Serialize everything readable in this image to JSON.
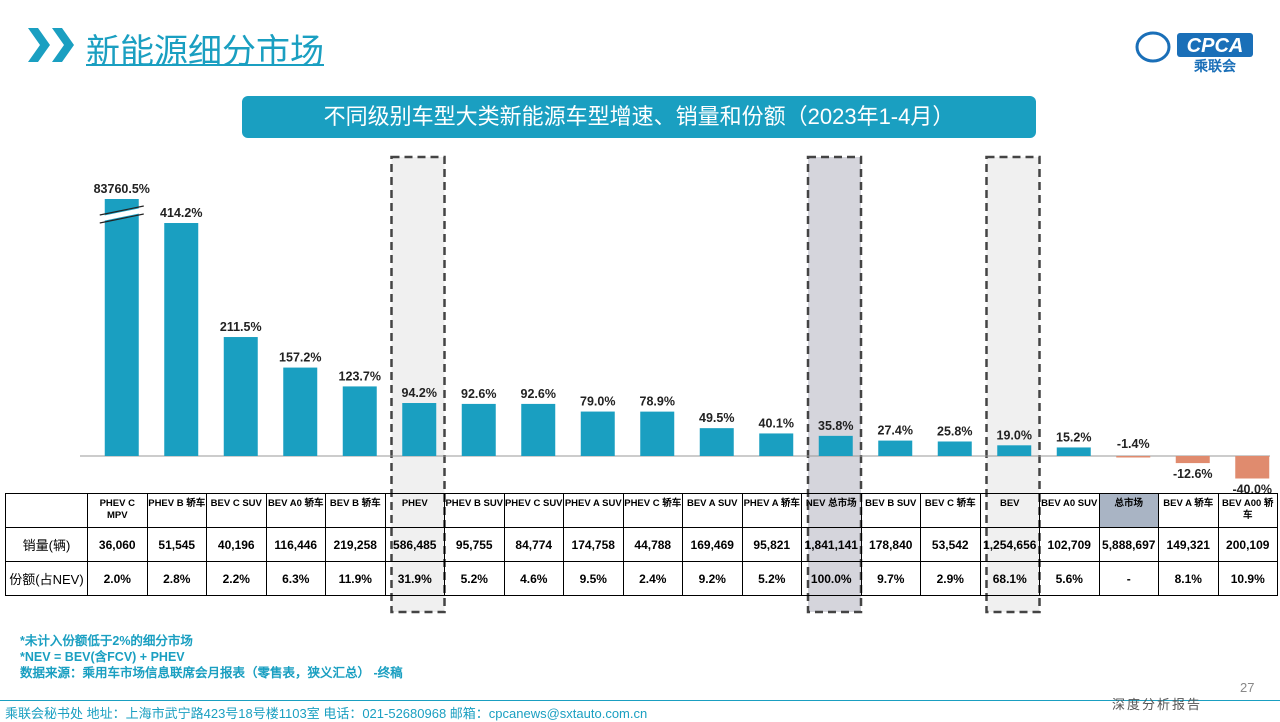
{
  "header": {
    "title": "新能源细分市场",
    "logo_text": "CPCA",
    "logo_cn": "乘联会",
    "subtitle": "不同级别车型大类新能源车型增速、销量和份额（2023年1-4月）"
  },
  "chart_data": {
    "type": "bar",
    "title": "不同级别车型大类新能源车型增速、销量和份额（2023年1-4月）",
    "categories": [
      "PHEV C MPV",
      "PHEV B 轿车",
      "BEV C SUV",
      "BEV A0 轿车",
      "BEV B 轿车",
      "PHEV",
      "PHEV B SUV",
      "PHEV C SUV",
      "PHEV A SUV",
      "PHEV C 轿车",
      "BEV A SUV",
      "PHEV A 轿车",
      "NEV 总市场",
      "BEV B SUV",
      "BEV C 轿车",
      "BEV",
      "BEV A0 SUV",
      "总市场",
      "BEV A 轿车",
      "BEV A00 轿车"
    ],
    "series": [
      {
        "values": [
          83760.5,
          414.2,
          211.5,
          157.2,
          123.7,
          94.2,
          92.6,
          92.6,
          79.0,
          78.9,
          49.5,
          40.1,
          35.8,
          27.4,
          25.8,
          19.0,
          15.2,
          -1.4,
          -12.6,
          -40.0
        ]
      }
    ],
    "data_labels": [
      "83760.5%",
      "414.2%",
      "211.5%",
      "157.2%",
      "123.7%",
      "94.2%",
      "92.6%",
      "92.6%",
      "79.0%",
      "78.9%",
      "49.5%",
      "40.1%",
      "35.8%",
      "27.4%",
      "25.8%",
      "19.0%",
      "15.2%",
      "-1.4%",
      "-12.6%",
      "-40.0%"
    ],
    "axis_break": true,
    "highlighted": [
      "PHEV",
      "NEV 总市场",
      "BEV"
    ],
    "colors": {
      "positive": "#1a9fc1",
      "negative": "#e08b6e",
      "highlight_fill": "#f0f0f0",
      "nev_fill": "#d5d5dc",
      "total_header": "#a9b4c4"
    }
  },
  "table": {
    "row_labels": [
      "销量(辆)",
      "份额(占NEV)"
    ],
    "headers": [
      "PHEV C MPV",
      "PHEV B 轿车",
      "BEV C SUV",
      "BEV A0 轿车",
      "BEV B 轿车",
      "PHEV",
      "PHEV B SUV",
      "PHEV C SUV",
      "PHEV A SUV",
      "PHEV C 轿车",
      "BEV A SUV",
      "PHEV A 轿车",
      "NEV 总市场",
      "BEV B SUV",
      "BEV C 轿车",
      "BEV",
      "BEV A0 SUV",
      "总市场",
      "BEV A 轿车",
      "BEV A00 轿车"
    ],
    "sales": [
      "36,060",
      "51,545",
      "40,196",
      "116,446",
      "219,258",
      "586,485",
      "95,755",
      "84,774",
      "174,758",
      "44,788",
      "169,469",
      "95,821",
      "1,841,141",
      "178,840",
      "53,542",
      "1,254,656",
      "102,709",
      "5,888,697",
      "149,321",
      "200,109"
    ],
    "share": [
      "2.0%",
      "2.8%",
      "2.2%",
      "6.3%",
      "11.9%",
      "31.9%",
      "5.2%",
      "4.6%",
      "9.5%",
      "2.4%",
      "9.2%",
      "5.2%",
      "100.0%",
      "9.7%",
      "2.9%",
      "68.1%",
      "5.6%",
      "-",
      "8.1%",
      "10.9%"
    ]
  },
  "notes": [
    "*未计入份额低于2%的细分市场",
    "*NEV = BEV(含FCV) + PHEV",
    "数据来源：乘用车市场信息联席会月报表（零售表，狭义汇总） -终稿"
  ],
  "footer": {
    "address": "乘联会秘书处   地址：上海市武宁路423号18号楼1103室  电话：021-52680968   邮箱：cpcanews@sxtauto.com.cn",
    "report": "深度分析报告",
    "page": "27"
  }
}
